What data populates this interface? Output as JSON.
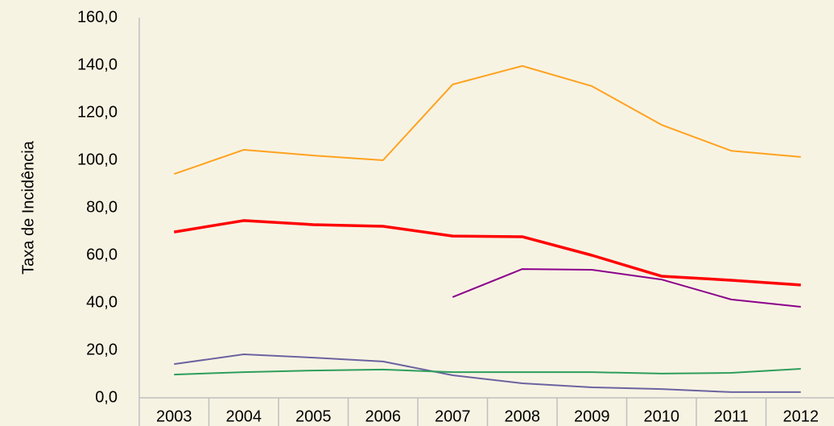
{
  "chart_data": {
    "type": "line",
    "y_label": "Taxa de Incidência",
    "categories": [
      "2003",
      "2004",
      "2005",
      "2006",
      "2007",
      "2008",
      "2009",
      "2010",
      "2011",
      "2012"
    ],
    "series": [
      {
        "color": "#ffa21f",
        "line_width": 2,
        "values": [
          94.2,
          104.4,
          102,
          100,
          131.9,
          139.7,
          131.2,
          114.9,
          104,
          101.4
        ]
      },
      {
        "color": "#ff0000",
        "line_width": 3.5,
        "values": [
          69.8,
          74.6,
          72.9,
          72.2,
          68.1,
          67.8,
          60,
          51.2,
          49.5,
          47.5
        ]
      },
      {
        "color": "#8b008b",
        "line_width": 2,
        "values": [
          null,
          null,
          null,
          null,
          42.4,
          54.2,
          53.9,
          49.8,
          41.4,
          38.3
        ]
      },
      {
        "color": "#6b63a0",
        "line_width": 2,
        "values": [
          14.2,
          18.3,
          16.9,
          15.3,
          9.5,
          6.1,
          4.4,
          3.7,
          2.4,
          2.4
        ]
      },
      {
        "color": "#2e9e5b",
        "line_width": 2,
        "values": [
          9.8,
          10.8,
          11.5,
          11.9,
          10.8,
          10.8,
          10.8,
          10.2,
          10.5,
          12.2
        ]
      }
    ],
    "ylim": [
      0,
      160
    ],
    "yticks": [
      {
        "value": 0,
        "label": "0,0"
      },
      {
        "value": 20,
        "label": "20,0"
      },
      {
        "value": 40,
        "label": "40,0"
      },
      {
        "value": 60,
        "label": "60,0"
      },
      {
        "value": 80,
        "label": "80,0"
      },
      {
        "value": 100,
        "label": "100,0"
      },
      {
        "value": 120,
        "label": "120,0"
      },
      {
        "value": 140,
        "label": "140,0"
      },
      {
        "value": 160,
        "label": "160,0"
      }
    ],
    "grid": false
  }
}
